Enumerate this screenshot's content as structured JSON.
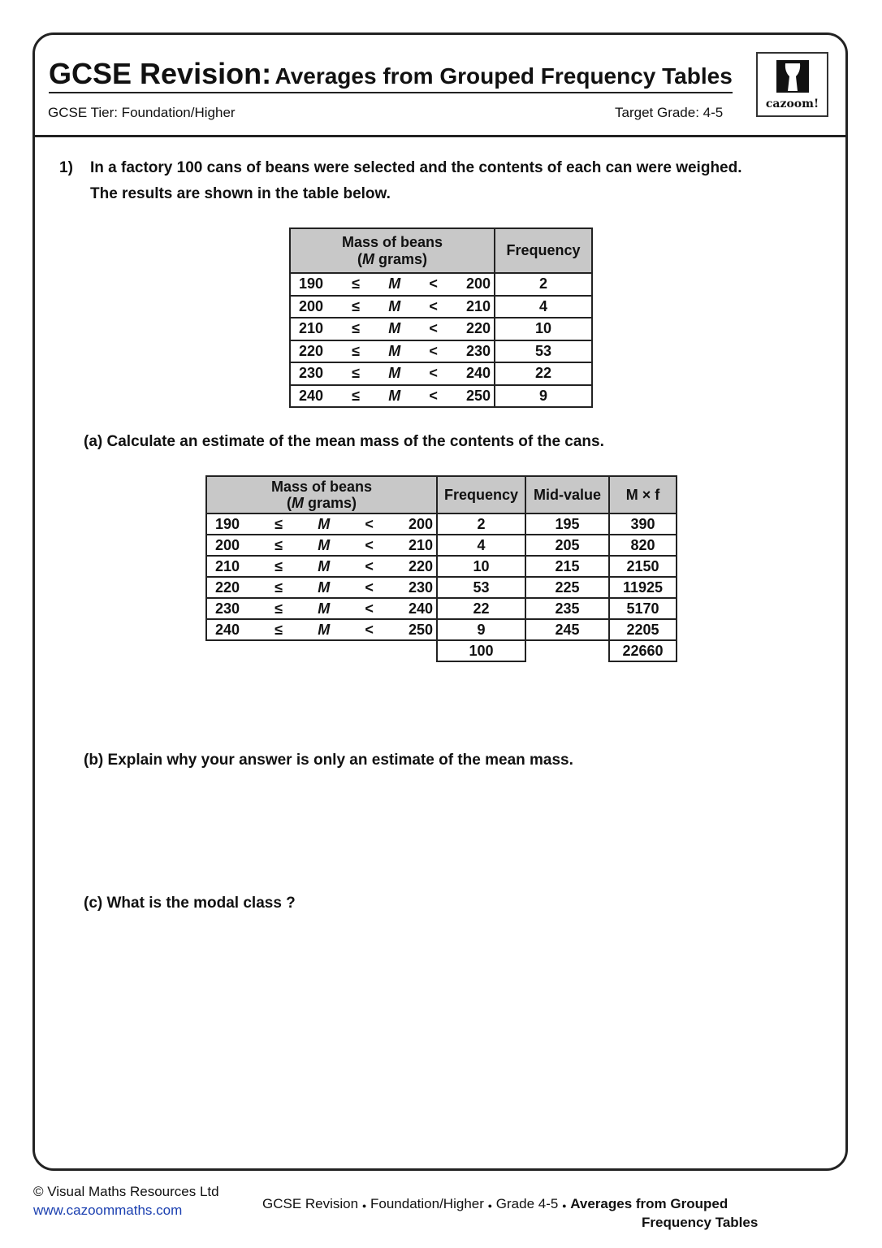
{
  "header": {
    "title_main": "GCSE Revision:",
    "title_sub": "Averages from Grouped Frequency Tables",
    "tier": "GCSE Tier: Foundation/Higher",
    "grade": "Target Grade: 4-5",
    "logo_text": "cazoom!"
  },
  "question": {
    "number": "1)",
    "line1": "In a factory 100 cans of beans were selected and the contents of each can were weighed.",
    "line2": "The results are shown in the table below.",
    "part_a": "(a) Calculate an estimate of the mean mass of the contents of the cans.",
    "part_b": "(b) Explain why your answer is only an estimate of the mean mass.",
    "part_c": "(c) What is the modal class ?"
  },
  "table1": {
    "head_mass_1": "Mass of beans",
    "head_mass_var": "M",
    "head_mass_2": "grams)",
    "head_mass_open": "(",
    "head_freq": "Frequency",
    "rows": [
      {
        "lo": "190",
        "le": "≤",
        "m": "M",
        "lt": "<",
        "hi": "200",
        "f": "2"
      },
      {
        "lo": "200",
        "le": "≤",
        "m": "M",
        "lt": "<",
        "hi": "210",
        "f": "4"
      },
      {
        "lo": "210",
        "le": "≤",
        "m": "M",
        "lt": "<",
        "hi": "220",
        "f": "10"
      },
      {
        "lo": "220",
        "le": "≤",
        "m": "M",
        "lt": "<",
        "hi": "230",
        "f": "53"
      },
      {
        "lo": "230",
        "le": "≤",
        "m": "M",
        "lt": "<",
        "hi": "240",
        "f": "22"
      },
      {
        "lo": "240",
        "le": "≤",
        "m": "M",
        "lt": "<",
        "hi": "250",
        "f": "9"
      }
    ]
  },
  "table2": {
    "head_mass_1": "Mass of beans",
    "head_mass_var": "M",
    "head_mass_2": "grams)",
    "head_mass_open": "(",
    "head_freq": "Frequency",
    "head_mid": "Mid-value",
    "head_mf": "M × f",
    "rows": [
      {
        "lo": "190",
        "le": "≤",
        "m": "M",
        "lt": "<",
        "hi": "200",
        "f": "2",
        "mid": "195",
        "mf": "390"
      },
      {
        "lo": "200",
        "le": "≤",
        "m": "M",
        "lt": "<",
        "hi": "210",
        "f": "4",
        "mid": "205",
        "mf": "820"
      },
      {
        "lo": "210",
        "le": "≤",
        "m": "M",
        "lt": "<",
        "hi": "220",
        "f": "10",
        "mid": "215",
        "mf": "2150"
      },
      {
        "lo": "220",
        "le": "≤",
        "m": "M",
        "lt": "<",
        "hi": "230",
        "f": "53",
        "mid": "225",
        "mf": "11925"
      },
      {
        "lo": "230",
        "le": "≤",
        "m": "M",
        "lt": "<",
        "hi": "240",
        "f": "22",
        "mid": "235",
        "mf": "5170"
      },
      {
        "lo": "240",
        "le": "≤",
        "m": "M",
        "lt": "<",
        "hi": "250",
        "f": "9",
        "mid": "245",
        "mf": "2205"
      }
    ],
    "total_f": "100",
    "total_mf": "22660"
  },
  "footer": {
    "copyright": "© Visual Maths Resources Ltd",
    "link": "www.cazoommaths.com",
    "c1": "GCSE Revision",
    "c2": "Foundation/Higher",
    "c3": "Grade 4-5",
    "c4a": "Averages from Grouped",
    "c4b": "Frequency Tables",
    "bullet": "●"
  }
}
